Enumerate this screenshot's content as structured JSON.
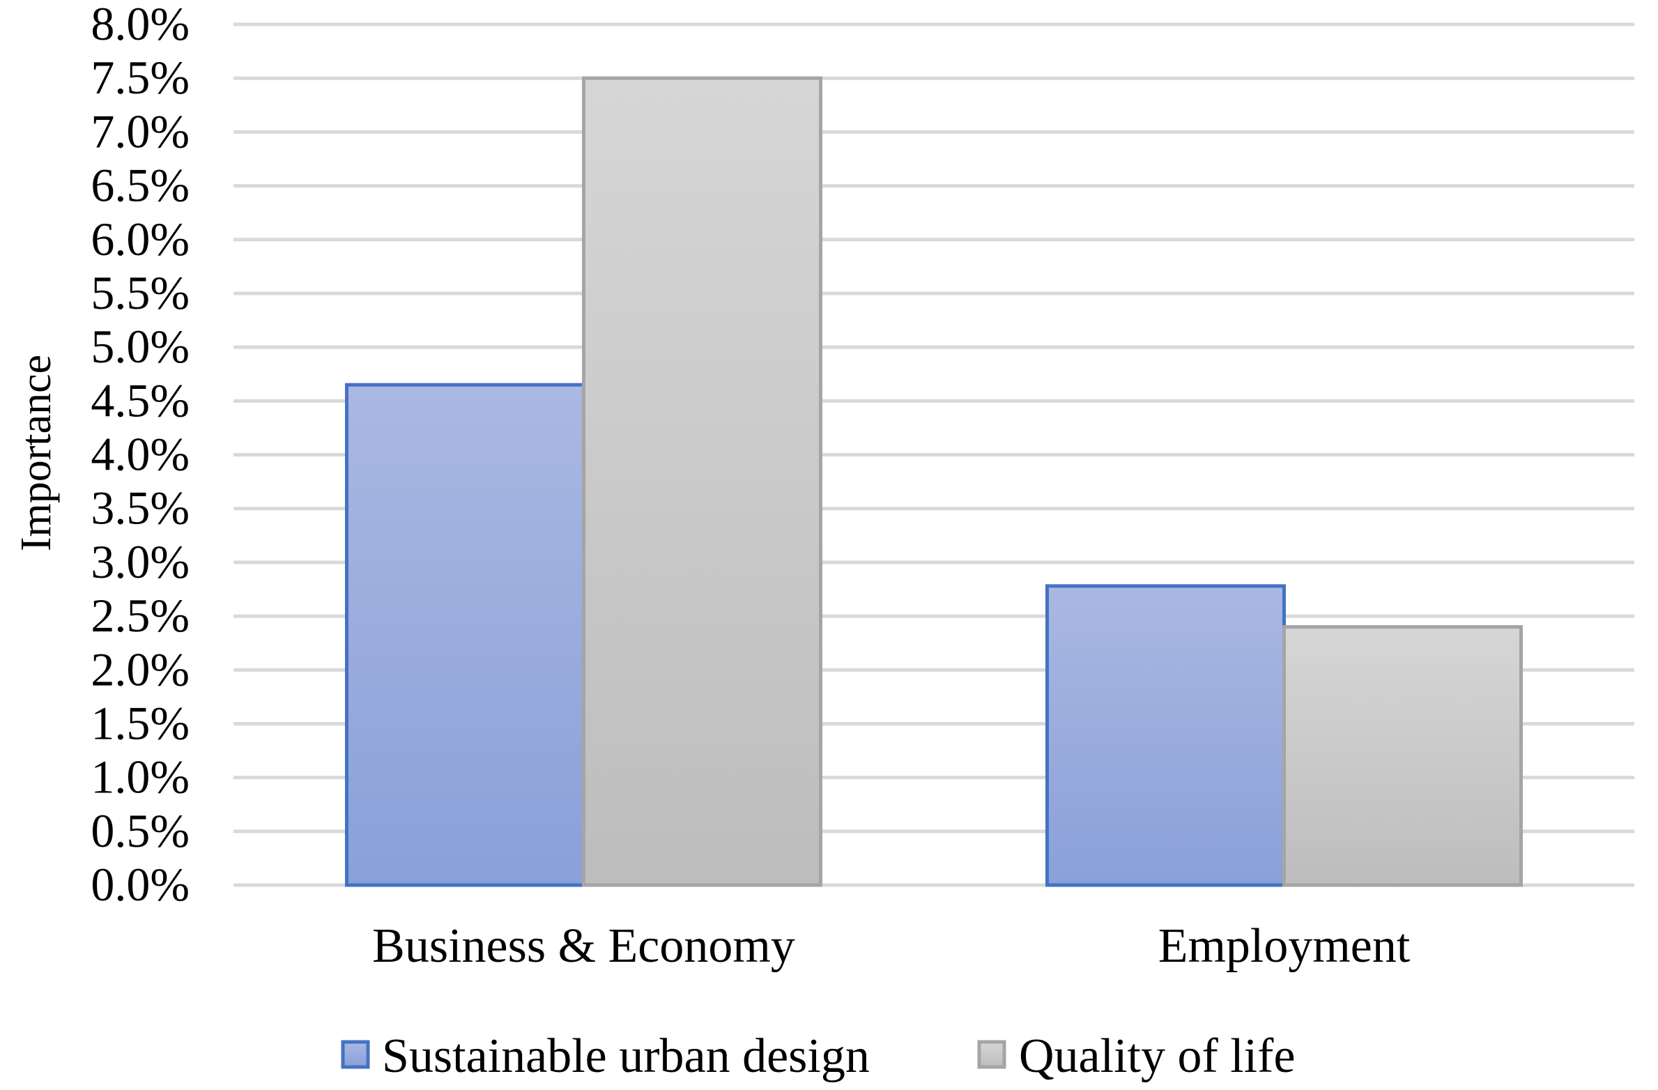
{
  "chart_data": {
    "type": "bar",
    "title": "",
    "xlabel": "",
    "ylabel": "Importance",
    "categories": [
      "Business & Economy",
      "Employment"
    ],
    "series": [
      {
        "name": "Sustainable urban design",
        "values": [
          0.0465,
          0.0278
        ],
        "color": "#8fa3d9",
        "stroke": "#4472c4"
      },
      {
        "name": "Quality of life",
        "values": [
          0.075,
          0.024
        ],
        "color": "#cccccc",
        "stroke": "#a5a5a5"
      }
    ],
    "ylim": [
      0,
      0.08
    ],
    "yticks": [
      0,
      0.005,
      0.01,
      0.015,
      0.02,
      0.025,
      0.03,
      0.035,
      0.04,
      0.045,
      0.05,
      0.055,
      0.06,
      0.065,
      0.07,
      0.075,
      0.08
    ],
    "ytick_labels": [
      "0.0%",
      "0.5%",
      "1.0%",
      "1.5%",
      "2.0%",
      "2.5%",
      "3.0%",
      "3.5%",
      "4.0%",
      "4.5%",
      "5.0%",
      "5.5%",
      "6.0%",
      "6.5%",
      "7.0%",
      "7.5%",
      "8.0%"
    ],
    "grid": true,
    "gridline_color": "#d9d9d9",
    "legend_position": "bottom"
  }
}
